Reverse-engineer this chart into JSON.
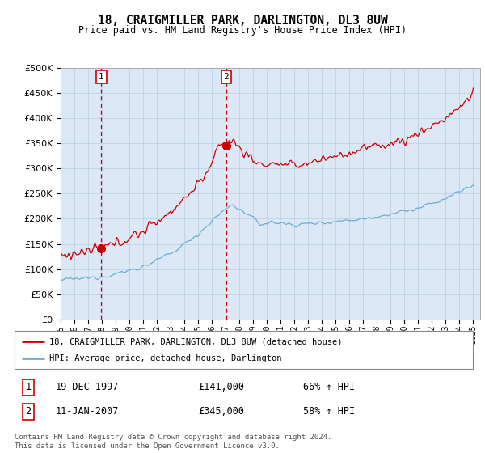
{
  "title": "18, CRAIGMILLER PARK, DARLINGTON, DL3 8UW",
  "subtitle": "Price paid vs. HM Land Registry's House Price Index (HPI)",
  "sale1_label": "19-DEC-1997",
  "sale1_price": 141000,
  "sale1_hpi_pct": "66% ↑ HPI",
  "sale1_x": 1997.96,
  "sale2_label": "11-JAN-2007",
  "sale2_price": 345000,
  "sale2_hpi_pct": "58% ↑ HPI",
  "sale2_x": 2007.03,
  "legend1": "18, CRAIGMILLER PARK, DARLINGTON, DL3 8UW (detached house)",
  "legend2": "HPI: Average price, detached house, Darlington",
  "footnote": "Contains HM Land Registry data © Crown copyright and database right 2024.\nThis data is licensed under the Open Government Licence v3.0.",
  "hpi_color": "#6baed6",
  "price_color": "#cc0000",
  "background_color": "#dce8f5",
  "plot_bg": "#ffffff",
  "ylim": [
    0,
    500000
  ],
  "yticks": [
    0,
    50000,
    100000,
    150000,
    200000,
    250000,
    300000,
    350000,
    400000,
    450000,
    500000
  ],
  "xlim_start": 1995.0,
  "xlim_end": 2025.5
}
